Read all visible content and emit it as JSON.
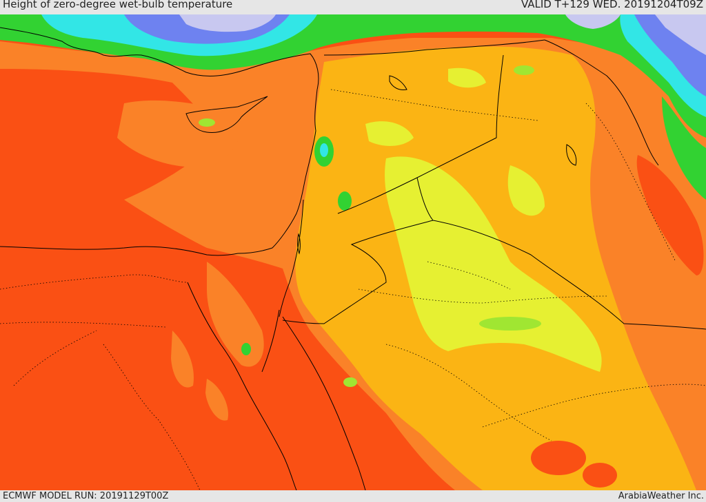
{
  "header": {
    "title": "Height of zero-degree wet-bulb temperature",
    "valid": "VALID T+129 WED. 20191204T09Z"
  },
  "footer": {
    "model_run": "ECMWF MODEL RUN: 20191129T00Z",
    "credit": "ArabiaWeather Inc."
  },
  "palette": {
    "deep_orange": "#fa5014",
    "orange": "#fa8228",
    "amber": "#fbb414",
    "yellow": "#e6f032",
    "light_green": "#a0e632",
    "green": "#32d232",
    "cyan": "#32e6e6",
    "blue": "#6e82f0",
    "lavender": "#c8c8f0",
    "border": "#000000"
  }
}
